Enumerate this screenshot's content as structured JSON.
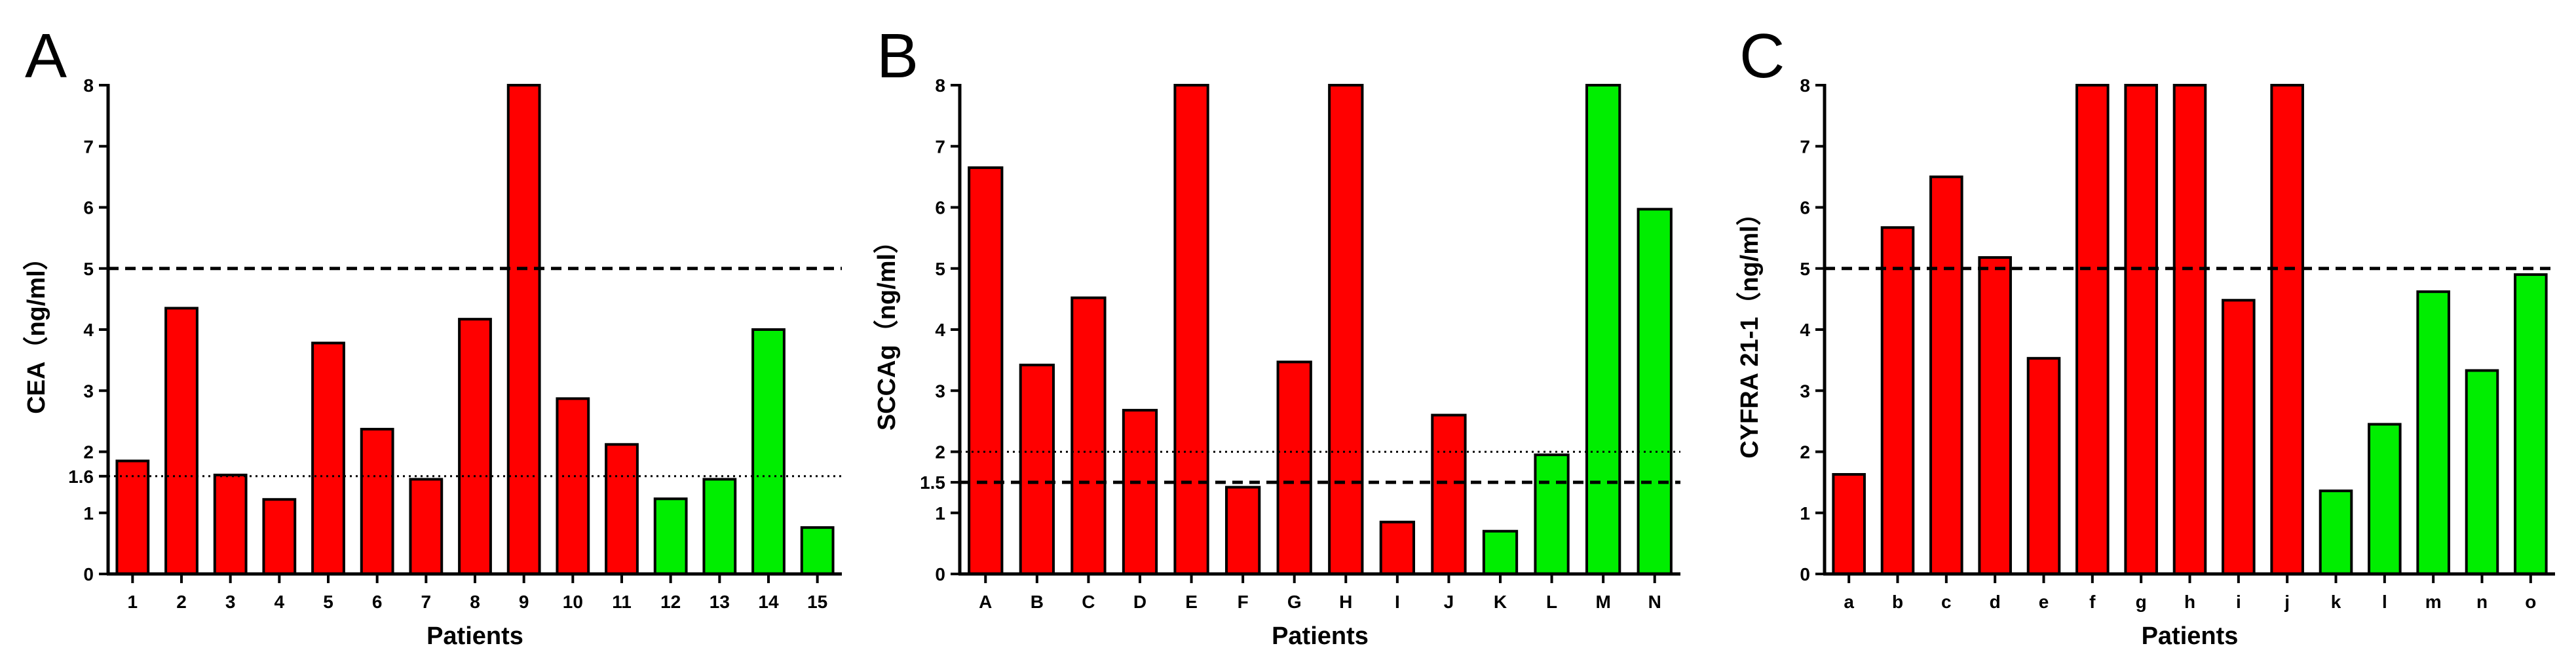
{
  "chart_data": [
    {
      "type": "bar",
      "panel_label": "A",
      "title": "",
      "xlabel": "Patients",
      "ylabel": "CEA（ng/ml）",
      "ylim": [
        0,
        8
      ],
      "yticks": [
        0,
        1,
        2,
        3,
        4,
        5,
        6,
        7,
        8
      ],
      "extra_ytick": "1.6",
      "categories": [
        "1",
        "2",
        "3",
        "4",
        "5",
        "6",
        "7",
        "8",
        "9",
        "10",
        "11",
        "12",
        "13",
        "14",
        "15"
      ],
      "values": [
        1.85,
        4.35,
        1.62,
        1.22,
        3.78,
        2.37,
        1.55,
        4.17,
        8.0,
        2.87,
        2.12,
        1.23,
        1.55,
        4.0,
        0.76
      ],
      "colors": [
        "red",
        "red",
        "red",
        "red",
        "red",
        "red",
        "red",
        "red",
        "red",
        "red",
        "red",
        "green",
        "green",
        "green",
        "green"
      ],
      "reference_lines": [
        {
          "value": 5,
          "style": "dashed"
        },
        {
          "value": 1.6,
          "style": "dotted"
        }
      ],
      "grid": false
    },
    {
      "type": "bar",
      "panel_label": "B",
      "title": "",
      "xlabel": "Patients",
      "ylabel": "SCCAg（ng/ml）",
      "ylim": [
        0,
        8
      ],
      "yticks": [
        0,
        1,
        2,
        3,
        4,
        5,
        6,
        7,
        8
      ],
      "extra_ytick": "1.5",
      "categories": [
        "A",
        "B",
        "C",
        "D",
        "E",
        "F",
        "G",
        "H",
        "I",
        "J",
        "K",
        "L",
        "M",
        "N"
      ],
      "values": [
        6.65,
        3.42,
        4.52,
        2.68,
        8.0,
        1.42,
        3.47,
        8.0,
        0.85,
        2.6,
        0.7,
        1.95,
        8.0,
        5.97
      ],
      "colors": [
        "red",
        "red",
        "red",
        "red",
        "red",
        "red",
        "red",
        "red",
        "red",
        "red",
        "green",
        "green",
        "green",
        "green"
      ],
      "reference_lines": [
        {
          "value": 2,
          "style": "dotted"
        },
        {
          "value": 1.5,
          "style": "dashed"
        }
      ],
      "grid": false
    },
    {
      "type": "bar",
      "panel_label": "C",
      "title": "",
      "xlabel": "Patients",
      "ylabel": "CYFRA 21-1（ng/ml）",
      "ylim": [
        0,
        8
      ],
      "yticks": [
        0,
        1,
        2,
        3,
        4,
        5,
        6,
        7,
        8
      ],
      "extra_ytick": "",
      "categories": [
        "a",
        "b",
        "c",
        "d",
        "e",
        "f",
        "g",
        "h",
        "i",
        "j",
        "k",
        "l",
        "m",
        "n",
        "o"
      ],
      "values": [
        1.63,
        5.67,
        6.5,
        5.18,
        3.53,
        8.0,
        8.0,
        8.0,
        4.48,
        8.0,
        1.36,
        2.45,
        4.62,
        3.33,
        4.9
      ],
      "colors": [
        "red",
        "red",
        "red",
        "red",
        "red",
        "red",
        "red",
        "red",
        "red",
        "red",
        "green",
        "green",
        "green",
        "green",
        "green"
      ],
      "reference_lines": [
        {
          "value": 5,
          "style": "dashed"
        }
      ],
      "grid": false
    }
  ],
  "palette": {
    "red": "#ff0000",
    "green": "#00ee00",
    "outline": "#000000"
  }
}
